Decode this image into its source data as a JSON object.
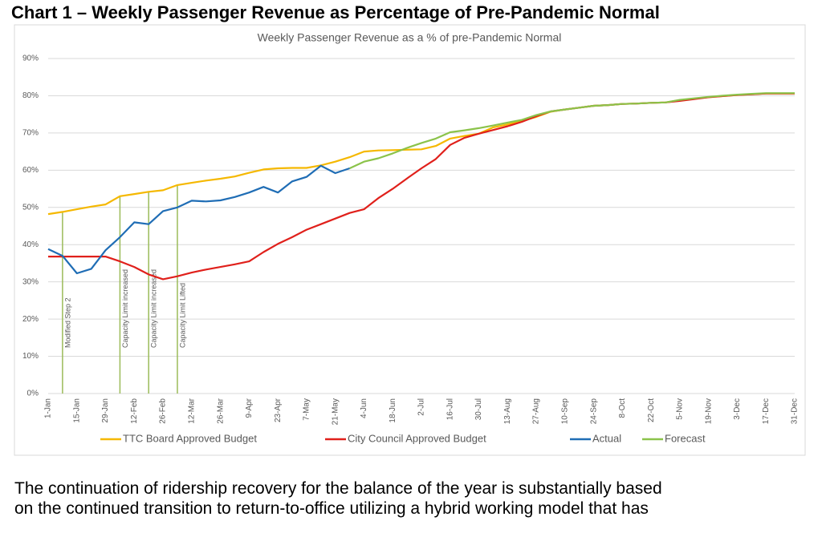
{
  "heading": "Chart 1 – Weekly Passenger Revenue as Percentage of Pre-Pandemic Normal",
  "chart_data": {
    "type": "line",
    "title": "Weekly Passenger Revenue as a % of pre-Pandemic Normal",
    "categories": [
      "1-Jan",
      null,
      "15-Jan",
      null,
      "29-Jan",
      null,
      "12-Feb",
      null,
      "26-Feb",
      null,
      "12-Mar",
      null,
      "26-Mar",
      null,
      "9-Apr",
      null,
      "23-Apr",
      null,
      "7-May",
      null,
      "21-May",
      null,
      "4-Jun",
      null,
      "18-Jun",
      null,
      "2-Jul",
      null,
      "16-Jul",
      null,
      "30-Jul",
      null,
      "13-Aug",
      null,
      "27-Aug",
      null,
      "10-Sep",
      null,
      "24-Sep",
      null,
      "8-Oct",
      null,
      "22-Oct",
      null,
      "5-Nov",
      null,
      "19-Nov",
      null,
      "3-Dec",
      null,
      "17-Dec",
      null,
      "31-Dec"
    ],
    "series": [
      {
        "name": "TTC Board Approved Budget",
        "color": "#f5b800",
        "values": [
          48.2,
          48.8,
          49.5,
          50.2,
          50.8,
          53,
          53.6,
          54.2,
          54.6,
          56,
          56.6,
          57.2,
          57.7,
          58.3,
          59.3,
          60.2,
          60.5,
          60.6,
          60.6,
          61.3,
          62.3,
          63.5,
          65,
          65.3,
          65.4,
          65.5,
          65.6,
          66.5,
          68.5,
          69.2,
          69.8,
          71.5,
          72.3,
          73.2,
          74.3,
          75.7,
          76.3,
          76.8,
          77.3,
          77.5,
          77.8,
          77.9,
          78.1,
          78.2,
          78.8,
          79.2,
          79.6,
          79.9,
          80.2,
          80.4,
          80.6,
          80.6,
          80.6
        ]
      },
      {
        "name": "City Council Approved Budget",
        "color": "#e0201b",
        "values": [
          36.8,
          36.8,
          36.8,
          36.8,
          36.8,
          35.5,
          34,
          32,
          30.7,
          31.5,
          32.5,
          33.3,
          34,
          34.7,
          35.5,
          38,
          40.2,
          42,
          44,
          45.5,
          47,
          48.5,
          49.5,
          52.5,
          55,
          57.8,
          60.5,
          63,
          66.8,
          68.7,
          69.8,
          70.8,
          71.8,
          73,
          74.5,
          75.8,
          76.3,
          76.8,
          77.3,
          77.5,
          77.8,
          77.9,
          78.1,
          78.2,
          78.6,
          79.1,
          79.6,
          79.9,
          80.2,
          80.4,
          80.6,
          80.6,
          80.6
        ]
      },
      {
        "name": "Actual",
        "color": "#1f6db5",
        "values": [
          38.8,
          37,
          32.3,
          33.5,
          38.5,
          42,
          46,
          45.5,
          49,
          50,
          51.8,
          51.6,
          51.9,
          52.8,
          54,
          55.5,
          54,
          57,
          58.2,
          61.2,
          59.2,
          60.5,
          null,
          null,
          null,
          null,
          null,
          null,
          null,
          null,
          null,
          null,
          null,
          null,
          null,
          null,
          null,
          null,
          null,
          null,
          null,
          null,
          null,
          null,
          null,
          null,
          null,
          null,
          null,
          null,
          null,
          null,
          null
        ]
      },
      {
        "name": "Forecast",
        "color": "#8bc34a",
        "values": [
          null,
          null,
          null,
          null,
          null,
          null,
          null,
          null,
          null,
          null,
          null,
          null,
          null,
          null,
          null,
          null,
          null,
          null,
          null,
          null,
          null,
          60.5,
          62.3,
          63.2,
          64.5,
          66,
          67.3,
          68.5,
          70.2,
          70.7,
          71.3,
          72,
          72.8,
          73.5,
          74.8,
          75.8,
          76.3,
          76.8,
          77.3,
          77.5,
          77.8,
          77.9,
          78.1,
          78.2,
          78.9,
          79.3,
          79.7,
          80,
          80.3,
          80.5,
          80.7,
          80.7,
          80.7
        ]
      }
    ],
    "annotations": [
      {
        "index": 1,
        "label": "Modified Step 2"
      },
      {
        "index": 5,
        "label": "Capacity Limit increased"
      },
      {
        "index": 7,
        "label": "Capacity Limit increased"
      },
      {
        "index": 9,
        "label": "Capacity Limit Lifted"
      }
    ],
    "annotation_color": "#9bbb59",
    "ylim": [
      0,
      90
    ],
    "yticks": [
      {
        "value": 0,
        "label": "0%"
      },
      {
        "value": 10,
        "label": "10%"
      },
      {
        "value": 20,
        "label": "20%"
      },
      {
        "value": 30,
        "label": "30%"
      },
      {
        "value": 40,
        "label": "40%"
      },
      {
        "value": 50,
        "label": "50%"
      },
      {
        "value": 60,
        "label": "60%"
      },
      {
        "value": 70,
        "label": "70%"
      },
      {
        "value": 80,
        "label": "80%"
      },
      {
        "value": 90,
        "label": "90%"
      }
    ],
    "grid": true,
    "legend": "bottom"
  },
  "paragraph": [
    "The continuation of ridership recovery for the balance of the year is substantially based",
    "on the continued transition to return-to-office utilizing a hybrid working model that has"
  ]
}
